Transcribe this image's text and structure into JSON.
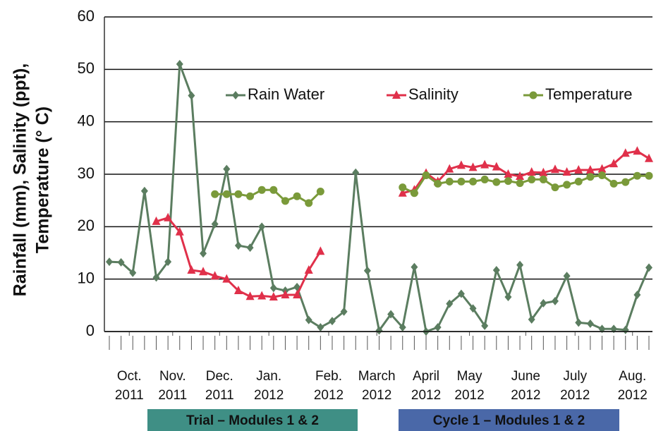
{
  "chart_data": {
    "type": "line",
    "ylabel": [
      "Rainfall (mm), Salinity (ppt),",
      "Temperature (° C)"
    ],
    "x": [
      0,
      1,
      2,
      3,
      4,
      5,
      6,
      7,
      8,
      9,
      10,
      11,
      12,
      13,
      14,
      15,
      16,
      17,
      18,
      19,
      20,
      21,
      22,
      23,
      24,
      25,
      26,
      27,
      28,
      29,
      30,
      31,
      32,
      33,
      34,
      35,
      36,
      37,
      38,
      39,
      40,
      41,
      42,
      43,
      44,
      45,
      46
    ],
    "series": [
      {
        "name": "Rain Water",
        "color": "#5b7d60",
        "marker": "diamond",
        "values": [
          13.3,
          13.2,
          11.2,
          26.8,
          10.3,
          13.3,
          51,
          45,
          14.9,
          20.5,
          31,
          16.4,
          16,
          20,
          8.3,
          7.8,
          8.5,
          2.2,
          0.8,
          2,
          3.8,
          30.3,
          11.6,
          0.2,
          3.3,
          0.8,
          12.3,
          0,
          0.8,
          5.3,
          7.2,
          4.4,
          1.1,
          11.7,
          6.6,
          12.7,
          2.3,
          5.4,
          5.8,
          10.6,
          1.7,
          1.5,
          0.5,
          0.5,
          0.3,
          7,
          12.2
        ]
      },
      {
        "name": "Salinity",
        "color": "#e0304a",
        "marker": "triangle",
        "values": [
          null,
          null,
          null,
          null,
          21,
          21.7,
          19,
          11.7,
          11.4,
          10.6,
          10,
          7.8,
          6.7,
          6.8,
          6.6,
          7,
          7,
          11.7,
          15.3,
          null,
          null,
          null,
          null,
          null,
          null,
          26.4,
          27,
          30.2,
          28.6,
          31,
          31.7,
          31.3,
          31.8,
          31.4,
          30,
          29.6,
          30.4,
          30.3,
          30.9,
          30.4,
          30.8,
          30.8,
          31,
          32,
          34,
          34.4,
          33
        ]
      },
      {
        "name": "Temperature",
        "color": "#7a9a3a",
        "marker": "circle",
        "values": [
          null,
          null,
          null,
          null,
          null,
          null,
          null,
          null,
          null,
          26.2,
          26.2,
          26.2,
          25.8,
          27,
          27,
          24.9,
          25.8,
          24.5,
          26.7,
          null,
          null,
          null,
          null,
          null,
          null,
          27.5,
          26.4,
          29.8,
          28.2,
          28.6,
          28.6,
          28.6,
          29,
          28.5,
          28.7,
          28.3,
          29,
          29,
          27.5,
          28,
          28.6,
          29.5,
          29.8,
          28.2,
          28.5,
          29.7,
          29.7
        ]
      }
    ],
    "xlim": [
      -0.42,
      46.3
    ],
    "xticks": [
      {
        "value": 1.7,
        "label": "Oct. 2011"
      },
      {
        "value": 5.4,
        "label": "Nov. 2011"
      },
      {
        "value": 9.4,
        "label": "Dec. 2011"
      },
      {
        "value": 13.6,
        "label": "Jan. 2012"
      },
      {
        "value": 18.7,
        "label": "Feb. 2012"
      },
      {
        "value": 22.8,
        "label": "March 2012"
      },
      {
        "value": 27,
        "label": "April 2012"
      },
      {
        "value": 30.7,
        "label": "May 2012"
      },
      {
        "value": 35.5,
        "label": "June 2012"
      },
      {
        "value": 39.7,
        "label": "July 2012"
      },
      {
        "value": 44.6,
        "label": "Aug. 2012"
      }
    ],
    "ylim": [
      0,
      60
    ],
    "yticks": [
      0,
      10,
      20,
      30,
      40,
      50,
      60
    ],
    "grid": true,
    "legend": "top",
    "annotations": [
      {
        "text": "Trial – Modules 1 & 2",
        "color": "#3f8f85"
      },
      {
        "text": "Cycle 1 – Modules 1 & 2",
        "color": "#4a68a8"
      }
    ]
  }
}
